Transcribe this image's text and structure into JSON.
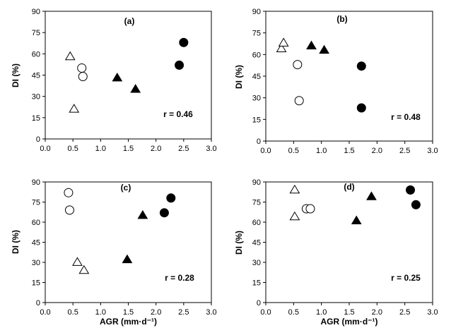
{
  "chart_data": [
    {
      "type": "scatter",
      "panel_label": "(a)",
      "annotation": "r = 0.46",
      "xlabel": "",
      "ylabel": "DI (%)",
      "xlim": [
        0,
        3
      ],
      "ylim": [
        0,
        90
      ],
      "x_ticks": [
        "0.0",
        "0.5",
        "1.0",
        "1.5",
        "2.0",
        "2.5",
        "3.0"
      ],
      "y_ticks": [
        "0",
        "15",
        "30",
        "45",
        "60",
        "75",
        "90"
      ],
      "series": [
        {
          "marker": "open-triangle",
          "points": [
            [
              0.45,
              58
            ],
            [
              0.52,
              21
            ]
          ]
        },
        {
          "marker": "open-circle",
          "points": [
            [
              0.66,
              50
            ],
            [
              0.68,
              44
            ]
          ]
        },
        {
          "marker": "filled-triangle",
          "points": [
            [
              1.3,
              43
            ],
            [
              1.63,
              35
            ]
          ]
        },
        {
          "marker": "filled-circle",
          "points": [
            [
              2.42,
              52
            ],
            [
              2.5,
              68
            ]
          ]
        }
      ]
    },
    {
      "type": "scatter",
      "panel_label": "(b)",
      "annotation": "r = 0.48",
      "xlabel": "",
      "ylabel": "DI (%)",
      "xlim": [
        0,
        3
      ],
      "ylim": [
        0,
        90
      ],
      "x_ticks": [
        "0.0",
        "0.5",
        "1.0",
        "1.5",
        "2.0",
        "2.5",
        "3.0"
      ],
      "y_ticks": [
        "0",
        "15",
        "30",
        "45",
        "60",
        "75",
        "90"
      ],
      "series": [
        {
          "marker": "open-triangle",
          "points": [
            [
              0.28,
              64
            ],
            [
              0.32,
              68
            ]
          ]
        },
        {
          "marker": "open-circle",
          "points": [
            [
              0.57,
              53
            ],
            [
              0.6,
              28
            ]
          ]
        },
        {
          "marker": "filled-triangle",
          "points": [
            [
              0.82,
              66
            ],
            [
              1.05,
              63
            ]
          ]
        },
        {
          "marker": "filled-circle",
          "points": [
            [
              1.72,
              52
            ],
            [
              1.72,
              23
            ]
          ]
        }
      ]
    },
    {
      "type": "scatter",
      "panel_label": "(c)",
      "annotation": "r = 0.28",
      "xlabel": "AGR (mm·d⁻¹)",
      "ylabel": "DI (%)",
      "xlim": [
        0,
        3
      ],
      "ylim": [
        0,
        90
      ],
      "x_ticks": [
        "0.0",
        "0.5",
        "1.0",
        "1.5",
        "2.0",
        "2.5",
        "3.0"
      ],
      "y_ticks": [
        "0",
        "15",
        "30",
        "45",
        "60",
        "75",
        "90"
      ],
      "series": [
        {
          "marker": "open-circle",
          "points": [
            [
              0.42,
              82
            ],
            [
              0.44,
              69
            ]
          ]
        },
        {
          "marker": "open-triangle",
          "points": [
            [
              0.58,
              30
            ],
            [
              0.7,
              24
            ]
          ]
        },
        {
          "marker": "filled-triangle",
          "points": [
            [
              1.48,
              32
            ],
            [
              1.76,
              65
            ]
          ]
        },
        {
          "marker": "filled-circle",
          "points": [
            [
              2.15,
              67
            ],
            [
              2.27,
              78
            ]
          ]
        }
      ]
    },
    {
      "type": "scatter",
      "panel_label": "(d)",
      "annotation": "r = 0.25",
      "xlabel": "AGR (mm·d⁻¹)",
      "ylabel": "DI (%)",
      "xlim": [
        0,
        3
      ],
      "ylim": [
        0,
        90
      ],
      "x_ticks": [
        "0.0",
        "0.5",
        "1.0",
        "1.5",
        "2.0",
        "2.5",
        "3.0"
      ],
      "y_ticks": [
        "0",
        "15",
        "30",
        "45",
        "60",
        "75",
        "90"
      ],
      "series": [
        {
          "marker": "open-triangle",
          "points": [
            [
              0.52,
              84
            ],
            [
              0.52,
              64
            ]
          ]
        },
        {
          "marker": "open-circle",
          "points": [
            [
              0.73,
              70
            ],
            [
              0.8,
              70
            ]
          ]
        },
        {
          "marker": "filled-triangle",
          "points": [
            [
              1.63,
              61
            ],
            [
              1.9,
              79
            ]
          ]
        },
        {
          "marker": "filled-circle",
          "points": [
            [
              2.6,
              84
            ],
            [
              2.7,
              73
            ]
          ]
        }
      ]
    }
  ]
}
